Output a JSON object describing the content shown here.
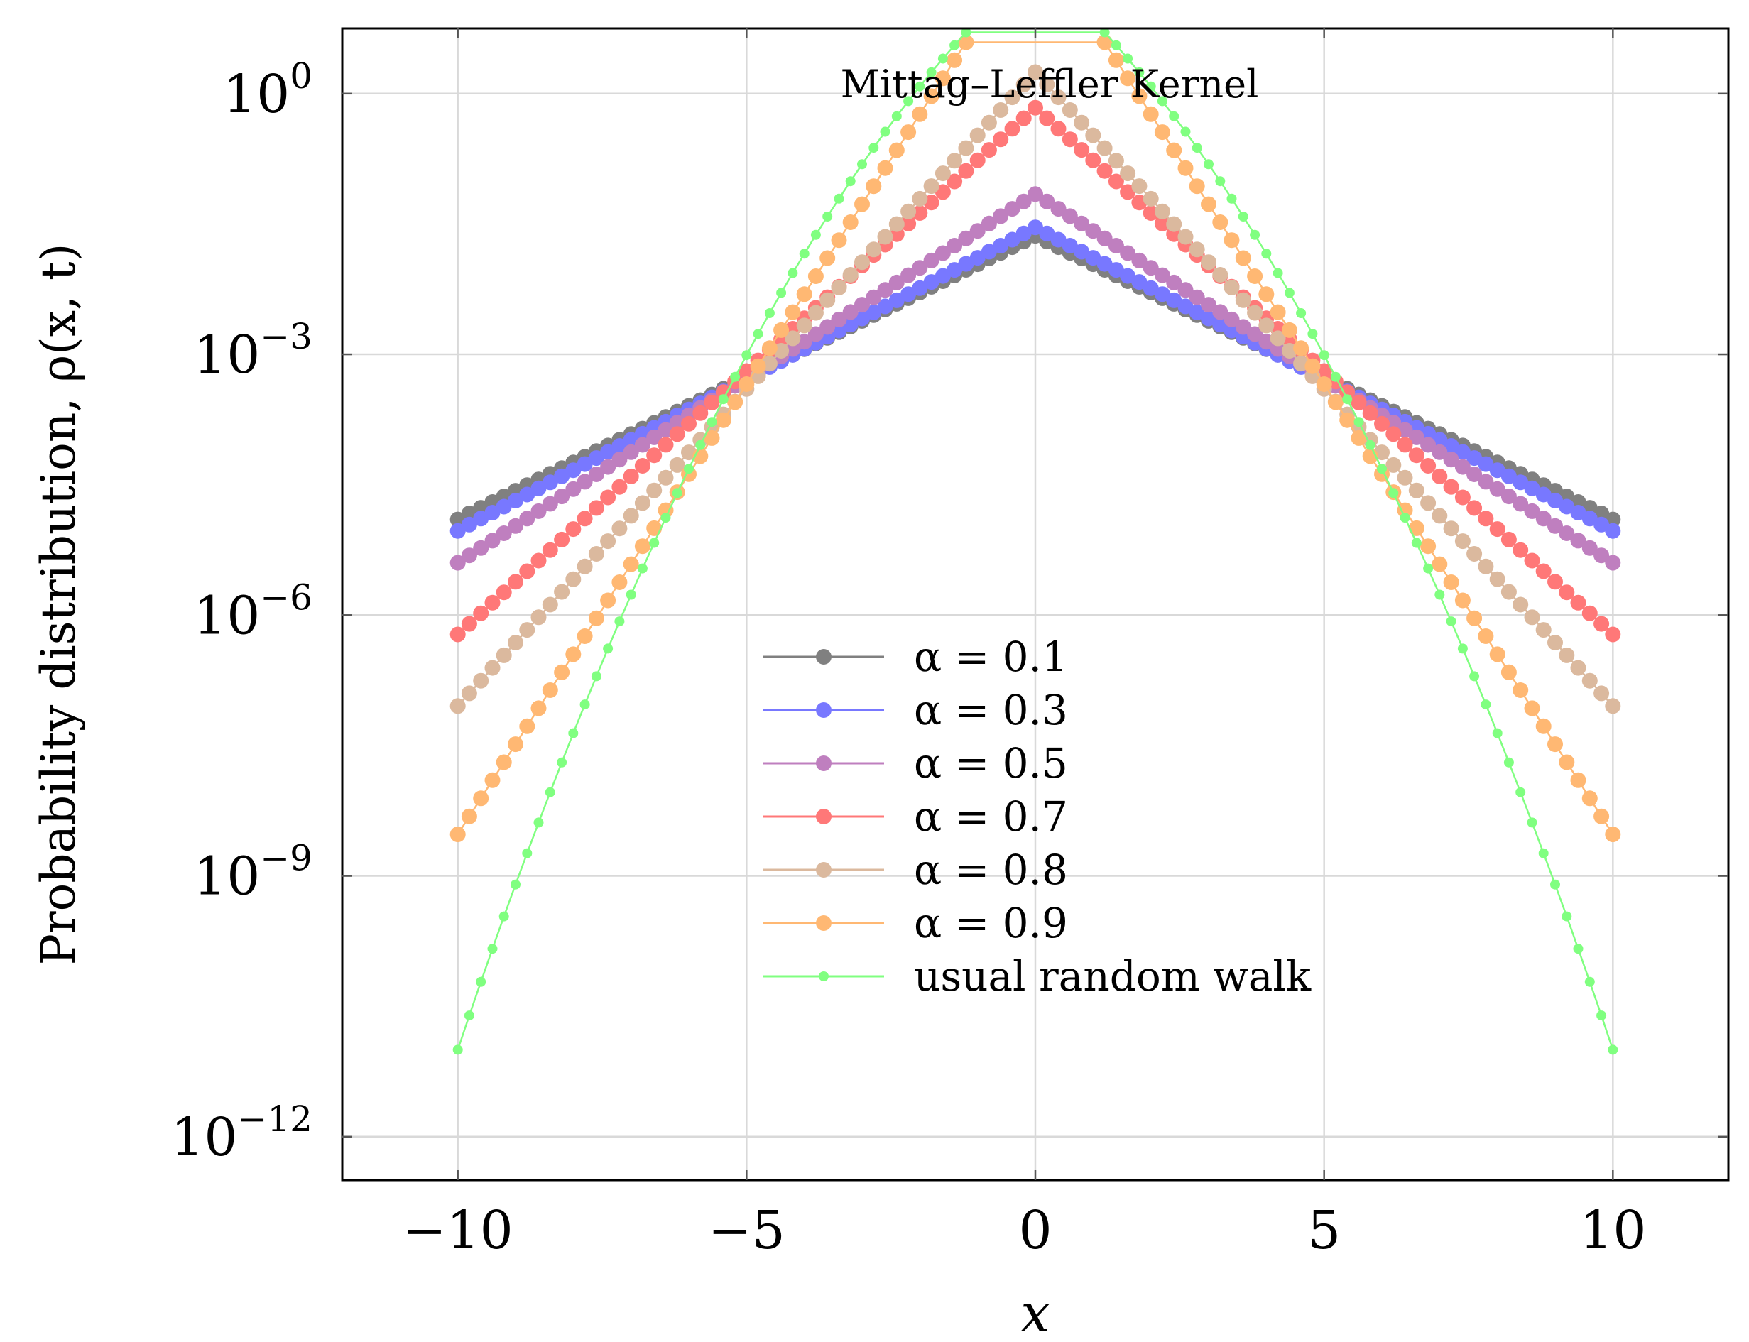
{
  "chart_data": {
    "type": "line",
    "title": "Mittag–Leffler Kernel",
    "xlabel": "x",
    "ylabel": "Probability distribution, ρ(x, t)",
    "xlim": [
      -12,
      12
    ],
    "ylim_log10": [
      -12.5,
      0.75
    ],
    "y_scale": "log",
    "grid": true,
    "legend_position": "center-bottom",
    "x_ticks": [
      {
        "value": -10,
        "label": "−10"
      },
      {
        "value": -5,
        "label": "−5"
      },
      {
        "value": 0,
        "label": "0"
      },
      {
        "value": 5,
        "label": "5"
      },
      {
        "value": 10,
        "label": "10"
      }
    ],
    "y_ticks": [
      {
        "log10": 0,
        "base": "10",
        "exp": "0"
      },
      {
        "log10": -3,
        "base": "10",
        "exp": "−3"
      },
      {
        "log10": -6,
        "base": "10",
        "exp": "−6"
      },
      {
        "log10": -9,
        "base": "10",
        "exp": "−9"
      },
      {
        "log10": -12,
        "base": "10",
        "exp": "−12"
      }
    ],
    "x": [
      -10.0,
      -9.8,
      -9.6,
      -9.4,
      -9.2,
      -9.0,
      -8.8,
      -8.6,
      -8.4,
      -8.2,
      -8.0,
      -7.8,
      -7.6,
      -7.4,
      -7.2,
      -7.0,
      -6.8,
      -6.6,
      -6.4,
      -6.2,
      -6.0,
      -5.8,
      -5.6,
      -5.4,
      -5.2,
      -5.0,
      -4.8,
      -4.6,
      -4.4,
      -4.2,
      -4.0,
      -3.8,
      -3.6,
      -3.4,
      -3.2,
      -3.0,
      -2.8,
      -2.6,
      -2.4,
      -2.2,
      -2.0,
      -1.8,
      -1.6,
      -1.4,
      -1.2,
      -1.0,
      -0.8,
      -0.6,
      -0.4,
      -0.2,
      0.0,
      0.2,
      0.4,
      0.6,
      0.8,
      1.0,
      1.2,
      1.4,
      1.6,
      1.8,
      2.0,
      2.2,
      2.4,
      2.6,
      2.8,
      3.0,
      3.2,
      3.4,
      3.6,
      3.8,
      4.0,
      4.2,
      4.4,
      4.6,
      4.8,
      5.0,
      5.2,
      5.4,
      5.6,
      5.8,
      6.0,
      6.2,
      6.4,
      6.6,
      6.8,
      7.0,
      7.2,
      7.4,
      7.6,
      7.8,
      8.0,
      8.2,
      8.4,
      8.6,
      8.8,
      9.0,
      9.2,
      9.4,
      9.6,
      9.8,
      10.0
    ],
    "series": [
      {
        "name": "α = 0.1",
        "color": "#808080",
        "marker_size": "large",
        "values": [
          1.26e-05,
          1.48e-05,
          1.72e-05,
          2e-05,
          2.32e-05,
          2.7e-05,
          3.13e-05,
          3.64e-05,
          4.23e-05,
          4.91e-05,
          5.71e-05,
          6.63e-05,
          7.71e-05,
          8.95e-05,
          0.000104,
          0.000121,
          0.00014,
          0.000163,
          0.00019,
          0.00022,
          0.000256,
          0.000297,
          0.000345,
          0.000402,
          0.000466,
          0.000542,
          0.00063,
          0.000732,
          0.00085,
          0.000988,
          0.001148,
          0.001334,
          0.00155,
          0.0018,
          0.00209,
          0.00243,
          0.00283,
          0.00328,
          0.00381,
          0.00443,
          0.00515,
          0.00599,
          0.00695,
          0.00808,
          0.00939,
          0.0109,
          0.0127,
          0.0147,
          0.0171,
          0.0199,
          0.0231,
          0.0199,
          0.0171,
          0.0147,
          0.0127,
          0.0109,
          0.00939,
          0.00808,
          0.00695,
          0.00599,
          0.00515,
          0.00443,
          0.00381,
          0.00328,
          0.00283,
          0.00243,
          0.00209,
          0.0018,
          0.00155,
          0.001334,
          0.001148,
          0.000988,
          0.00085,
          0.000732,
          0.00063,
          0.000542,
          0.000466,
          0.000402,
          0.000345,
          0.000297,
          0.000256,
          0.00022,
          0.00019,
          0.000163,
          0.00014,
          0.000121,
          0.000104,
          8.95e-05,
          7.71e-05,
          6.63e-05,
          5.71e-05,
          4.91e-05,
          4.23e-05,
          3.64e-05,
          3.13e-05,
          2.7e-05,
          2.32e-05,
          2e-05,
          1.72e-05,
          1.48e-05,
          1.26e-05
        ]
      },
      {
        "name": "α = 0.3",
        "color": "#7878ff",
        "marker_size": "large",
        "values": [
          9.3e-06,
          1.1e-05,
          1.29e-05,
          1.51e-05,
          1.77e-05,
          2.08e-05,
          2.44e-05,
          2.87e-05,
          3.37e-05,
          3.96e-05,
          4.65e-05,
          5.46e-05,
          6.41e-05,
          7.53e-05,
          8.85e-05,
          0.000104,
          0.000122,
          0.000143,
          0.000168,
          0.000198,
          0.000232,
          0.000273,
          0.00032,
          0.000376,
          0.000441,
          0.000518,
          0.000609,
          0.000715,
          0.00084,
          0.000986,
          0.001158,
          0.00136,
          0.0016,
          0.00188,
          0.0022,
          0.00259,
          0.00304,
          0.00357,
          0.00419,
          0.00493,
          0.00578,
          0.0068,
          0.00798,
          0.00937,
          0.011,
          0.0129,
          0.0152,
          0.0178,
          0.0209,
          0.0246,
          0.0289,
          0.0246,
          0.0209,
          0.0178,
          0.0152,
          0.0129,
          0.011,
          0.00937,
          0.00798,
          0.0068,
          0.00578,
          0.00493,
          0.00419,
          0.00357,
          0.00304,
          0.00259,
          0.0022,
          0.00188,
          0.0016,
          0.00136,
          0.001158,
          0.000986,
          0.00084,
          0.000715,
          0.000609,
          0.000518,
          0.000441,
          0.000376,
          0.00032,
          0.000273,
          0.000232,
          0.000198,
          0.000168,
          0.000143,
          0.000122,
          0.000104,
          8.85e-05,
          7.53e-05,
          6.41e-05,
          5.46e-05,
          4.65e-05,
          3.96e-05,
          3.37e-05,
          2.87e-05,
          2.44e-05,
          2.08e-05,
          1.77e-05,
          1.51e-05,
          1.29e-05,
          1.1e-05,
          9.3e-06
        ]
      },
      {
        "name": "α = 0.5",
        "color": "#bf7fbf",
        "marker_size": "large",
        "values": [
          4e-06,
          4.86e-06,
          5.91e-06,
          7.19e-06,
          8.74e-06,
          1.06e-05,
          1.29e-05,
          1.57e-05,
          1.91e-05,
          2.32e-05,
          2.82e-05,
          3.43e-05,
          4.17e-05,
          5.07e-05,
          6.16e-05,
          7.49e-05,
          9.1e-05,
          0.000111,
          0.000135,
          0.000164,
          0.000199,
          0.000242,
          0.000294,
          0.000358,
          0.000435,
          0.000529,
          0.000643,
          0.000781,
          0.00095,
          0.001155,
          0.0014,
          0.00171,
          0.00207,
          0.00252,
          0.00307,
          0.00373,
          0.00453,
          0.00551,
          0.0067,
          0.00814,
          0.0099,
          0.012,
          0.0146,
          0.0178,
          0.0216,
          0.0263,
          0.032,
          0.0389,
          0.0472,
          0.0574,
          0.0698,
          0.0574,
          0.0472,
          0.0389,
          0.032,
          0.0263,
          0.0216,
          0.0178,
          0.0146,
          0.012,
          0.0099,
          0.00814,
          0.0067,
          0.00551,
          0.00453,
          0.00373,
          0.00307,
          0.00252,
          0.00207,
          0.00171,
          0.0014,
          0.001155,
          0.00095,
          0.000781,
          0.000643,
          0.000529,
          0.000435,
          0.000358,
          0.000294,
          0.000242,
          0.000199,
          0.000164,
          0.000135,
          0.000111,
          9.1e-05,
          7.49e-05,
          6.16e-05,
          5.07e-05,
          4.17e-05,
          3.43e-05,
          2.82e-05,
          2.32e-05,
          1.91e-05,
          1.57e-05,
          1.29e-05,
          1.06e-05,
          8.74e-06,
          7.19e-06,
          5.91e-06,
          4.86e-06,
          4e-06
        ]
      },
      {
        "name": "α = 0.7",
        "color": "#ff7878",
        "marker_size": "large",
        "values": [
          6e-07,
          7.93e-07,
          1.05e-06,
          1.39e-06,
          1.83e-06,
          2.42e-06,
          3.2e-06,
          4.24e-06,
          5.6e-06,
          7.4e-06,
          9.78e-06,
          1.29e-05,
          1.71e-05,
          2.26e-05,
          2.99e-05,
          3.95e-05,
          5.22e-05,
          6.9e-05,
          9.12e-05,
          0.000121,
          0.000159,
          0.000211,
          0.000279,
          0.000368,
          0.000487,
          0.000644,
          0.000851,
          0.00112,
          0.00149,
          0.00197,
          0.0026,
          0.00343,
          0.00454,
          0.006,
          0.00793,
          0.0105,
          0.0139,
          0.0183,
          0.0242,
          0.032,
          0.0423,
          0.0558,
          0.0738,
          0.0976,
          0.129,
          0.171,
          0.225,
          0.298,
          0.394,
          0.52,
          0.688,
          0.52,
          0.394,
          0.298,
          0.225,
          0.171,
          0.129,
          0.0976,
          0.0738,
          0.0558,
          0.0423,
          0.032,
          0.0242,
          0.0183,
          0.0139,
          0.0105,
          0.00793,
          0.006,
          0.00454,
          0.00343,
          0.0026,
          0.00197,
          0.00149,
          0.00112,
          0.000851,
          0.000644,
          0.000487,
          0.000368,
          0.000279,
          0.000211,
          0.000159,
          0.000121,
          9.12e-05,
          6.9e-05,
          5.22e-05,
          3.95e-05,
          2.99e-05,
          2.26e-05,
          1.71e-05,
          1.29e-05,
          9.78e-06,
          7.4e-06,
          5.6e-06,
          4.24e-06,
          3.2e-06,
          2.42e-06,
          1.83e-06,
          1.39e-06,
          1.05e-06,
          7.93e-07,
          6e-07
        ]
      },
      {
        "name": "α = 0.8",
        "color": "#dbb99e",
        "marker_size": "large",
        "values": [
          9e-08,
          1.26e-07,
          1.76e-07,
          2.47e-07,
          3.45e-07,
          4.83e-07,
          6.76e-07,
          9.46e-07,
          1.32e-06,
          1.85e-06,
          2.59e-06,
          3.63e-06,
          5.07e-06,
          7.1e-06,
          9.94e-06,
          1.39e-05,
          1.95e-05,
          2.72e-05,
          3.81e-05,
          5.33e-05,
          7.46e-05,
          0.000104,
          0.000146,
          0.000204,
          0.000286,
          0.0004,
          0.00056,
          0.000783,
          0.0011,
          0.00153,
          0.00215,
          0.003,
          0.0042,
          0.00588,
          0.00823,
          0.0115,
          0.0161,
          0.0225,
          0.0315,
          0.0441,
          0.0617,
          0.0863,
          0.121,
          0.169,
          0.236,
          0.331,
          0.463,
          0.647,
          0.906,
          1.27,
          1.77,
          1.27,
          0.906,
          0.647,
          0.463,
          0.331,
          0.236,
          0.169,
          0.121,
          0.0863,
          0.0617,
          0.0441,
          0.0315,
          0.0225,
          0.0161,
          0.0115,
          0.00823,
          0.00588,
          0.0042,
          0.003,
          0.00215,
          0.00153,
          0.0011,
          0.000783,
          0.00056,
          0.0004,
          0.000286,
          0.000204,
          0.000146,
          0.000104,
          7.46e-05,
          5.33e-05,
          3.81e-05,
          2.72e-05,
          1.95e-05,
          1.39e-05,
          9.94e-06,
          7.1e-06,
          5.07e-06,
          3.63e-06,
          2.59e-06,
          1.85e-06,
          1.32e-06,
          9.46e-07,
          6.76e-07,
          4.83e-07,
          3.45e-07,
          2.47e-07,
          1.76e-07,
          1.26e-07,
          9e-08
        ]
      },
      {
        "name": "α = 0.9",
        "color": "#ffb873",
        "marker_size": "large",
        "values": [
          3e-09,
          4.84e-09,
          7.8e-09,
          1.26e-08,
          2.03e-08,
          3.27e-08,
          5.27e-08,
          8.49e-08,
          1.37e-07,
          2.2e-07,
          3.55e-07,
          5.72e-07,
          9.21e-07,
          1.48e-06,
          2.39e-06,
          3.85e-06,
          6.21e-06,
          1e-05,
          1.61e-05,
          2.6e-05,
          4.18e-05,
          6.74e-05,
          0.000109,
          0.000175,
          0.000282,
          0.000454,
          0.000731,
          0.00118,
          0.0019,
          0.00306,
          0.00492,
          0.00793,
          0.0128,
          0.0206,
          0.0331,
          0.0534,
          0.086,
          0.139,
          0.223,
          0.36,
          0.58,
          0.934,
          1.5,
          2.42,
          3.9,
          6.29,
          10.1,
          16.3,
          26.3,
          42.4,
          68.3,
          42.4,
          26.3,
          16.3,
          10.1,
          6.29,
          3.9,
          2.42,
          1.5,
          0.934,
          0.58,
          0.36,
          0.223,
          0.139,
          0.086,
          0.0534,
          0.0331,
          0.0206,
          0.0128,
          0.00793,
          0.00492,
          0.00306,
          0.0019,
          0.00118,
          0.000731,
          0.000454,
          0.000282,
          0.000175,
          0.000109,
          6.74e-05,
          4.18e-05,
          2.6e-05,
          1.61e-05,
          1e-05,
          6.21e-06,
          3.85e-06,
          2.39e-06,
          1.48e-06,
          9.21e-07,
          5.72e-07,
          3.55e-07,
          2.2e-07,
          1.37e-07,
          8.49e-08,
          5.27e-08,
          3.27e-08,
          2.03e-08,
          1.26e-08,
          7.8e-09,
          4.84e-09,
          3e-09
        ]
      },
      {
        "name": "usual random walk",
        "color": "#80ff80",
        "marker_size": "small",
        "values": [
          1e-11,
          2.48e-11,
          6.04e-11,
          1.45e-10,
          3.42e-10,
          7.95e-10,
          1.82e-09,
          4.11e-09,
          9.17e-09,
          2.02e-08,
          4.38e-08,
          9.38e-08,
          1.98e-07,
          4.12e-07,
          8.47e-07,
          1.72e-06,
          3.44e-06,
          6.79e-06,
          1.32e-05,
          2.54e-05,
          4.83e-05,
          9.05e-05,
          0.000167,
          0.000305,
          0.00055,
          0.000978,
          0.00172,
          0.00298,
          0.0051,
          0.00862,
          0.0144,
          0.0237,
          0.0385,
          0.0618,
          0.0981,
          0.154,
          0.238,
          0.364,
          0.549,
          0.819,
          1.21,
          1.76,
          2.53,
          3.6,
          5.07,
          7.06,
          9.72,
          13.2,
          17.8,
          23.8,
          31.5,
          23.8,
          17.8,
          13.2,
          9.72,
          7.06,
          5.07,
          3.6,
          2.53,
          1.76,
          1.21,
          0.819,
          0.549,
          0.364,
          0.238,
          0.154,
          0.0981,
          0.0618,
          0.0385,
          0.0237,
          0.0144,
          0.00862,
          0.0051,
          0.00298,
          0.00172,
          0.000978,
          0.00055,
          0.000305,
          0.000167,
          9.05e-05,
          4.83e-05,
          2.54e-05,
          1.32e-05,
          6.79e-06,
          3.44e-06,
          1.72e-06,
          8.47e-07,
          4.12e-07,
          1.98e-07,
          9.38e-08,
          4.38e-08,
          2.02e-08,
          9.17e-09,
          4.11e-09,
          1.82e-09,
          7.95e-10,
          3.42e-10,
          1.45e-10,
          6.04e-11,
          2.48e-11,
          1e-11
        ]
      }
    ]
  }
}
